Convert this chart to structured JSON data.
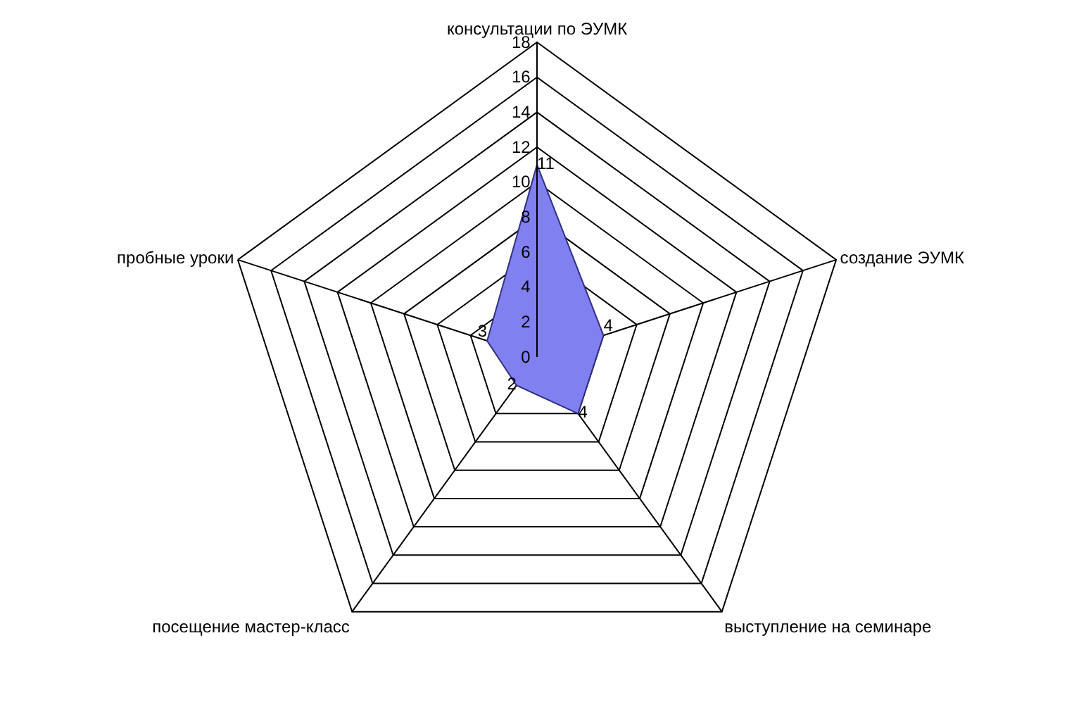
{
  "chart_data": {
    "type": "radar",
    "categories": [
      "консультации по ЭУМК",
      "создание ЭУМК",
      "выступление на семинаре",
      "посещение мастер-класс",
      "пробные уроки"
    ],
    "series": [
      {
        "color": "#8080f0",
        "values": [
          11,
          4,
          4,
          2,
          3
        ]
      }
    ],
    "ylim": [
      0,
      18
    ],
    "yticks": [
      0,
      2,
      4,
      6,
      8,
      10,
      12,
      14,
      16,
      18
    ],
    "grid": true,
    "data_labels": true,
    "marker": "none"
  }
}
